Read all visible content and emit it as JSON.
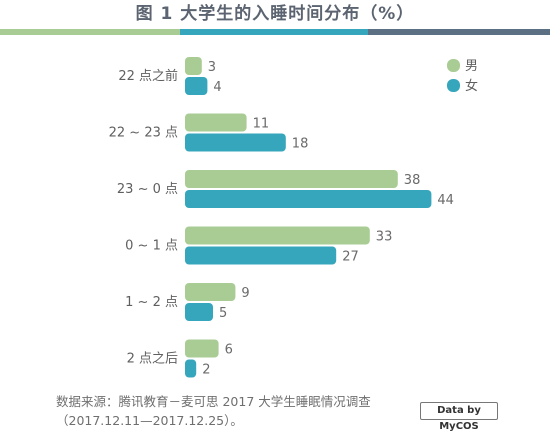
{
  "title": "图 1  大学生的入睡时间分布（%）",
  "colors": {
    "male": "#a9cc94",
    "female": "#36a6bc",
    "title_bar": [
      "#a9cc94",
      "#36a6bc",
      "#5b7083"
    ]
  },
  "source_line1": "数据来源：腾讯教育－麦可思 2017 大学生睡眠情况调查",
  "source_line2": "（2017.12.11—2017.12.25）。",
  "badge": "Data by MyCOS",
  "chart_data": {
    "type": "bar",
    "orientation": "horizontal",
    "categories": [
      "22 点之前",
      "22 ~ 23 点",
      "23 ~ 0 点",
      "0 ~ 1 点",
      "1 ~ 2 点",
      "2 点之后"
    ],
    "series": [
      {
        "name": "男",
        "values": [
          3,
          11,
          38,
          33,
          9,
          6
        ]
      },
      {
        "name": "女",
        "values": [
          4,
          18,
          44,
          27,
          5,
          2
        ]
      }
    ],
    "legend": "top-right",
    "grid": false
  }
}
